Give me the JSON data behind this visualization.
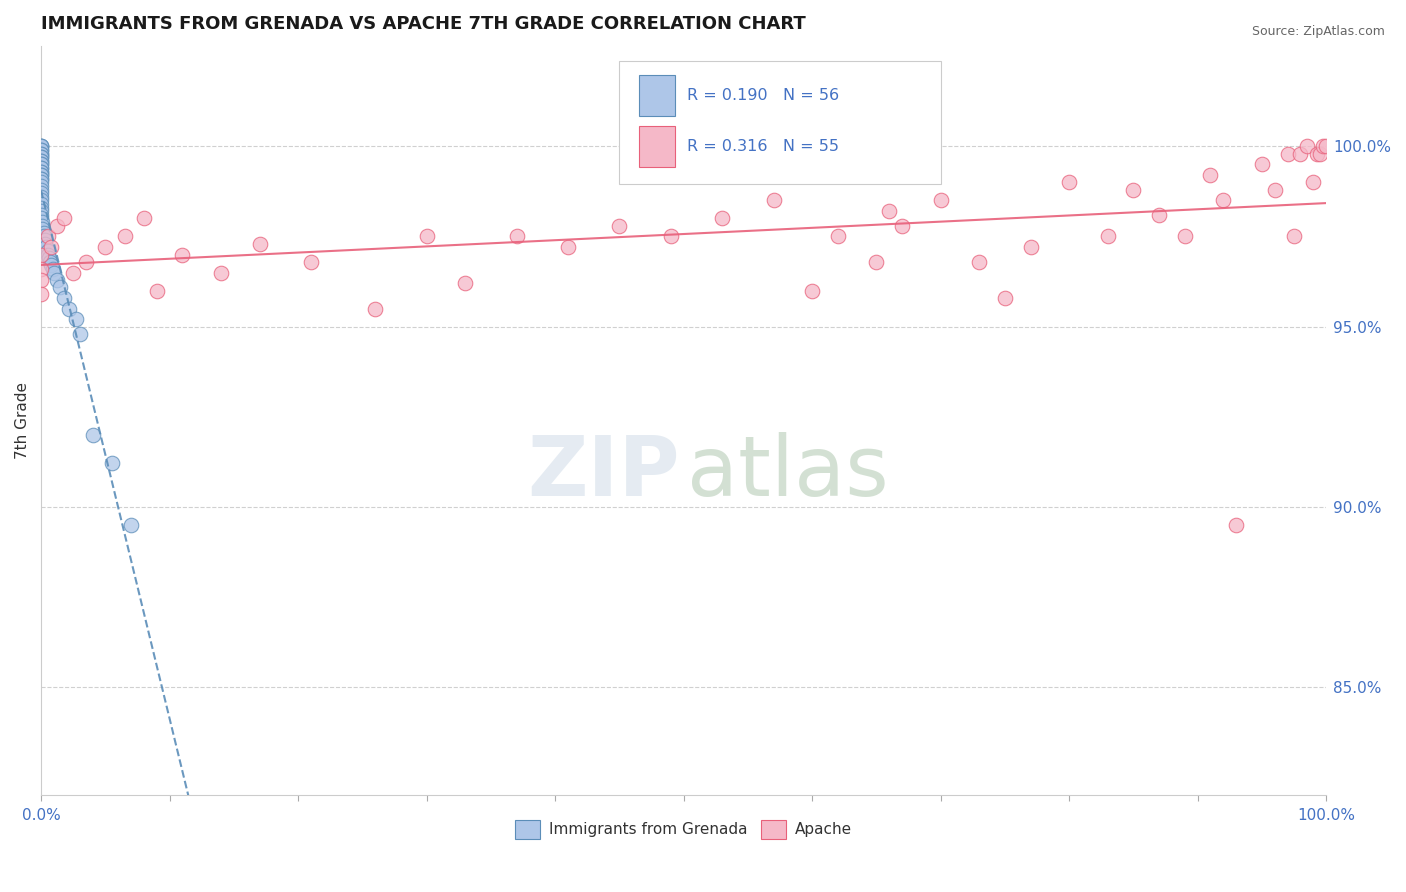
{
  "title": "IMMIGRANTS FROM GRENADA VS APACHE 7TH GRADE CORRELATION CHART",
  "source": "Source: ZipAtlas.com",
  "ylabel_left": "7th Grade",
  "series1_label": "Immigrants from Grenada",
  "series2_label": "Apache",
  "series1_R": "R = 0.190",
  "series1_N": "N = 56",
  "series2_R": "R = 0.316",
  "series2_N": "N = 55",
  "series1_color": "#aec6e8",
  "series2_color": "#f5b8c8",
  "trendline1_color": "#5b8db8",
  "trendline2_color": "#e8607a",
  "right_ytick_labels": [
    "85.0%",
    "90.0%",
    "95.0%",
    "100.0%"
  ],
  "right_ytick_values": [
    0.85,
    0.9,
    0.95,
    1.0
  ],
  "xlim": [
    0.0,
    1.0
  ],
  "ylim": [
    0.82,
    1.028
  ],
  "watermark_zip_color": "#d0dce8",
  "watermark_atlas_color": "#b0c8b0",
  "s1_x": [
    0.0,
    0.0,
    0.0,
    0.0,
    0.0,
    0.0,
    0.0,
    0.0,
    0.0,
    0.0,
    0.0,
    0.0,
    0.0,
    0.0,
    0.0,
    0.0,
    0.0,
    0.0,
    0.0,
    0.0,
    0.0,
    0.0,
    0.0,
    0.0,
    0.0,
    0.0,
    0.0,
    0.0,
    0.0,
    0.0,
    0.0,
    0.0,
    0.001,
    0.001,
    0.001,
    0.002,
    0.002,
    0.003,
    0.003,
    0.004,
    0.005,
    0.005,
    0.006,
    0.007,
    0.008,
    0.009,
    0.01,
    0.012,
    0.015,
    0.018,
    0.022,
    0.027,
    0.03,
    0.04,
    0.055,
    0.07
  ],
  "s1_y": [
    1.0,
    1.0,
    1.0,
    0.999,
    0.999,
    0.998,
    0.998,
    0.997,
    0.997,
    0.996,
    0.996,
    0.995,
    0.995,
    0.994,
    0.994,
    0.993,
    0.993,
    0.992,
    0.992,
    0.991,
    0.991,
    0.99,
    0.989,
    0.988,
    0.987,
    0.986,
    0.985,
    0.984,
    0.983,
    0.982,
    0.981,
    0.98,
    0.979,
    0.978,
    0.977,
    0.976,
    0.975,
    0.974,
    0.973,
    0.972,
    0.971,
    0.97,
    0.969,
    0.968,
    0.967,
    0.966,
    0.965,
    0.963,
    0.961,
    0.958,
    0.955,
    0.952,
    0.948,
    0.92,
    0.912,
    0.895
  ],
  "s2_x": [
    0.0,
    0.0,
    0.0,
    0.0,
    0.005,
    0.008,
    0.012,
    0.018,
    0.025,
    0.035,
    0.05,
    0.065,
    0.08,
    0.09,
    0.11,
    0.14,
    0.17,
    0.21,
    0.26,
    0.3,
    0.33,
    0.37,
    0.41,
    0.45,
    0.49,
    0.53,
    0.57,
    0.6,
    0.62,
    0.65,
    0.66,
    0.67,
    0.7,
    0.73,
    0.75,
    0.77,
    0.8,
    0.83,
    0.85,
    0.87,
    0.89,
    0.91,
    0.92,
    0.93,
    0.95,
    0.96,
    0.97,
    0.975,
    0.98,
    0.985,
    0.99,
    0.993,
    0.995,
    0.998,
    1.0
  ],
  "s2_y": [
    0.97,
    0.966,
    0.963,
    0.959,
    0.975,
    0.972,
    0.978,
    0.98,
    0.965,
    0.968,
    0.972,
    0.975,
    0.98,
    0.96,
    0.97,
    0.965,
    0.973,
    0.968,
    0.955,
    0.975,
    0.962,
    0.975,
    0.972,
    0.978,
    0.975,
    0.98,
    0.985,
    0.96,
    0.975,
    0.968,
    0.982,
    0.978,
    0.985,
    0.968,
    0.958,
    0.972,
    0.99,
    0.975,
    0.988,
    0.981,
    0.975,
    0.992,
    0.985,
    0.895,
    0.995,
    0.988,
    0.998,
    0.975,
    0.998,
    1.0,
    0.99,
    0.998,
    0.998,
    1.0,
    1.0
  ]
}
